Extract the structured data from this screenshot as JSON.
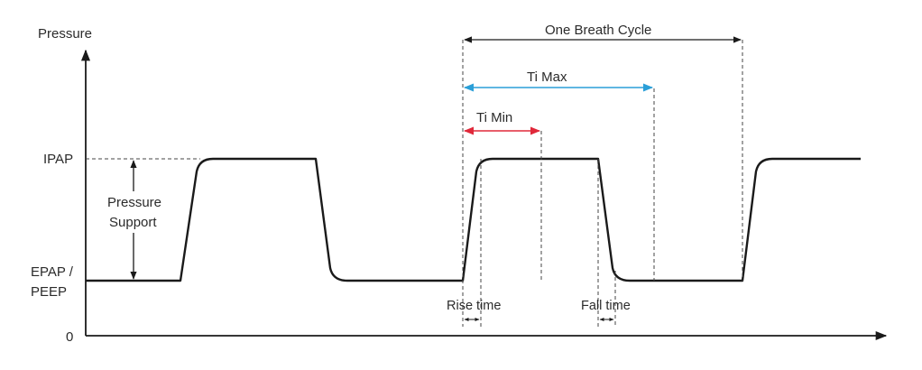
{
  "axes": {
    "y_label": "Pressure",
    "ipap_label": "IPAP",
    "epap_label_line1": "EPAP /",
    "epap_label_line2": "PEEP",
    "zero_label": "0"
  },
  "annotations": {
    "pressure_support_line1": "Pressure",
    "pressure_support_line2": "Support",
    "one_breath_cycle": "One Breath Cycle",
    "ti_max": "Ti Max",
    "ti_min": "Ti Min",
    "rise_time": "Rise time",
    "fall_time": "Fall time"
  },
  "colors": {
    "waveform": "#1a1a1a",
    "ti_max": "#2a9fd8",
    "ti_min": "#e0283a",
    "guide": "#444444"
  }
}
